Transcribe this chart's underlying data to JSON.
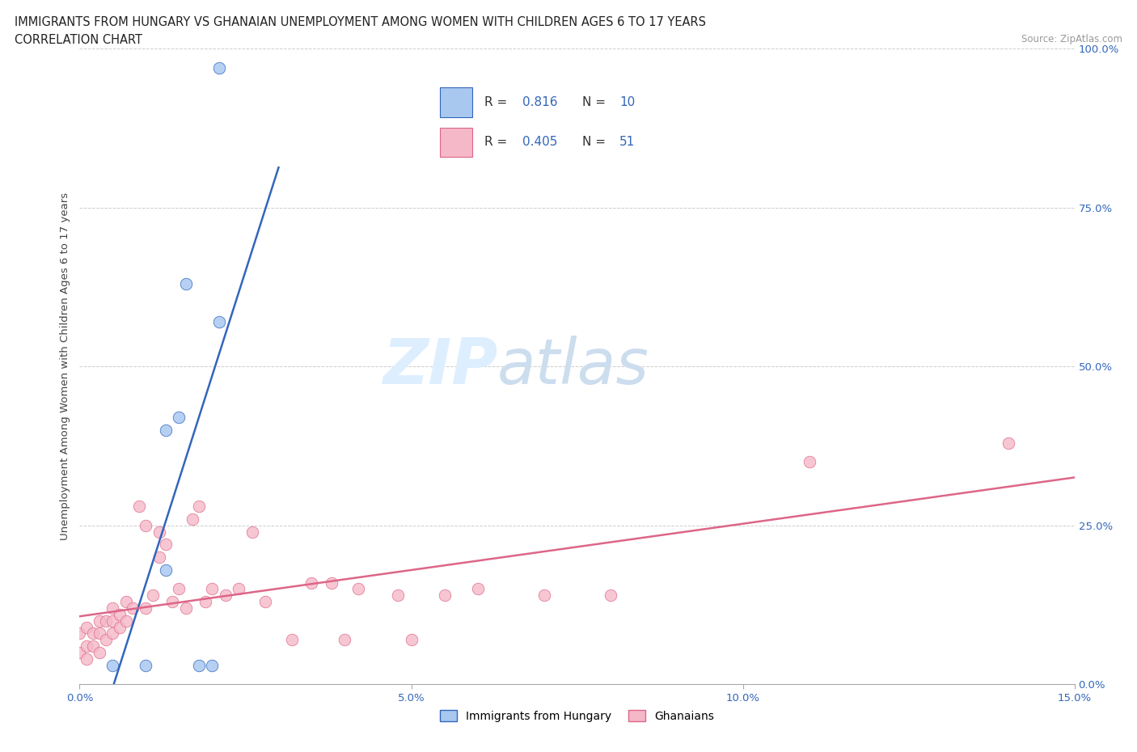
{
  "title_line1": "IMMIGRANTS FROM HUNGARY VS GHANAIAN UNEMPLOYMENT AMONG WOMEN WITH CHILDREN AGES 6 TO 17 YEARS",
  "title_line2": "CORRELATION CHART",
  "source_text": "Source: ZipAtlas.com",
  "ylabel_label": "Unemployment Among Women with Children Ages 6 to 17 years",
  "x_min": 0.0,
  "x_max": 0.15,
  "y_min": 0.0,
  "y_max": 1.0,
  "x_ticks": [
    0.0,
    0.05,
    0.1,
    0.15
  ],
  "x_tick_labels": [
    "0.0%",
    "5.0%",
    "10.0%",
    "15.0%"
  ],
  "y_ticks": [
    0.0,
    0.25,
    0.5,
    0.75,
    1.0
  ],
  "y_tick_labels": [
    "0.0%",
    "25.0%",
    "50.0%",
    "75.0%",
    "100.0%"
  ],
  "hungary_color": "#A8C8F0",
  "ghana_color": "#F5B8C8",
  "trendline_hungary_color": "#3366BB",
  "trendline_ghana_color": "#DD6688",
  "legend_R_hungary": "0.816",
  "legend_N_hungary": "10",
  "legend_R_ghana": "0.405",
  "legend_N_ghana": "51",
  "hungary_x": [
    0.005,
    0.01,
    0.013,
    0.013,
    0.015,
    0.016,
    0.018,
    0.02,
    0.021,
    0.021
  ],
  "hungary_y": [
    0.03,
    0.03,
    0.18,
    0.4,
    0.42,
    0.63,
    0.03,
    0.03,
    0.57,
    0.97
  ],
  "ghana_x": [
    0.0,
    0.0,
    0.001,
    0.001,
    0.001,
    0.002,
    0.002,
    0.003,
    0.003,
    0.003,
    0.004,
    0.004,
    0.005,
    0.005,
    0.005,
    0.006,
    0.006,
    0.007,
    0.007,
    0.008,
    0.009,
    0.01,
    0.01,
    0.011,
    0.012,
    0.012,
    0.013,
    0.014,
    0.015,
    0.016,
    0.017,
    0.018,
    0.019,
    0.02,
    0.022,
    0.024,
    0.026,
    0.028,
    0.032,
    0.035,
    0.038,
    0.04,
    0.042,
    0.048,
    0.05,
    0.055,
    0.06,
    0.07,
    0.08,
    0.11,
    0.14
  ],
  "ghana_y": [
    0.05,
    0.08,
    0.04,
    0.06,
    0.09,
    0.06,
    0.08,
    0.05,
    0.08,
    0.1,
    0.07,
    0.1,
    0.08,
    0.1,
    0.12,
    0.09,
    0.11,
    0.1,
    0.13,
    0.12,
    0.28,
    0.12,
    0.25,
    0.14,
    0.2,
    0.24,
    0.22,
    0.13,
    0.15,
    0.12,
    0.26,
    0.28,
    0.13,
    0.15,
    0.14,
    0.15,
    0.24,
    0.13,
    0.07,
    0.16,
    0.16,
    0.07,
    0.15,
    0.14,
    0.07,
    0.14,
    0.15,
    0.14,
    0.14,
    0.35,
    0.38
  ]
}
